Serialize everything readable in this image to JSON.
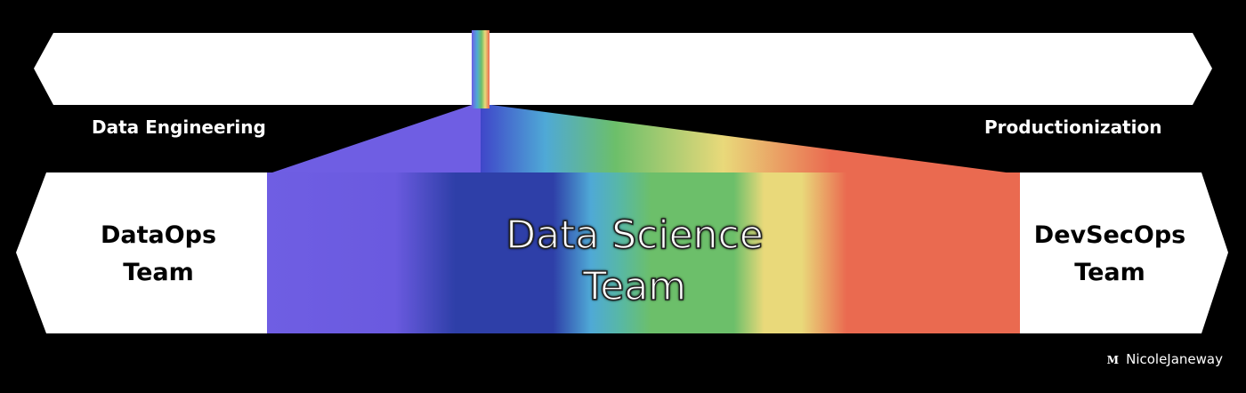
{
  "top_bar": {
    "left_label": "Data Engineering",
    "right_label": "Productionization"
  },
  "left_team": {
    "line1": "DataOps",
    "line2": "Team"
  },
  "right_team": {
    "line1": "DevSecOps",
    "line2": "Team"
  },
  "center": {
    "line1": "Data Science",
    "line2": "Team"
  },
  "credit": {
    "mark": "M",
    "name": "NicoleJaneway"
  },
  "spectrum_colors": [
    "#6f5ee3",
    "#2e3fa8",
    "#4fa9d6",
    "#6cbf6a",
    "#e9d97a",
    "#ea6a50"
  ]
}
